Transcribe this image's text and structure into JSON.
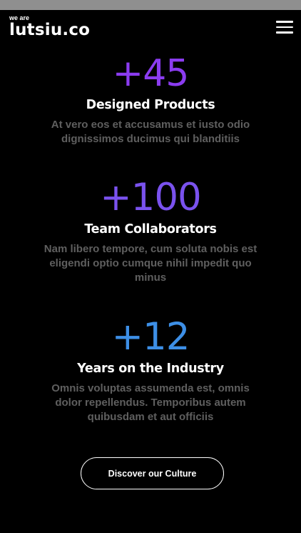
{
  "header": {
    "brand_prefix": "we are",
    "brand_name": "lutsiu.co",
    "menu_icon": "hamburger-menu-icon"
  },
  "stats": [
    {
      "number": "+45",
      "title": "Designed Products",
      "description": "At vero eos et accusamus et iusto odio dignissimos ducimus qui blanditiis",
      "color": "#8b3cf0"
    },
    {
      "number": "+100",
      "title": "Team Collaborators",
      "description": "Nam libero tempore, cum soluta nobis est eligendi optio cumque nihil impedit quo minus",
      "color": "#7a52ee"
    },
    {
      "number": "+12",
      "title": "Years on the Industry",
      "description": "Omnis voluptas assumenda est, omnis dolor repellendus. Temporibus autem quibusdam et aut officiis",
      "color": "#3d8fe6"
    }
  ],
  "cta": {
    "label": "Discover our Culture"
  },
  "colors": {
    "background": "#000000",
    "text": "#ffffff",
    "muted": "#5f5f5f",
    "topbar": "#8f8f8f"
  }
}
